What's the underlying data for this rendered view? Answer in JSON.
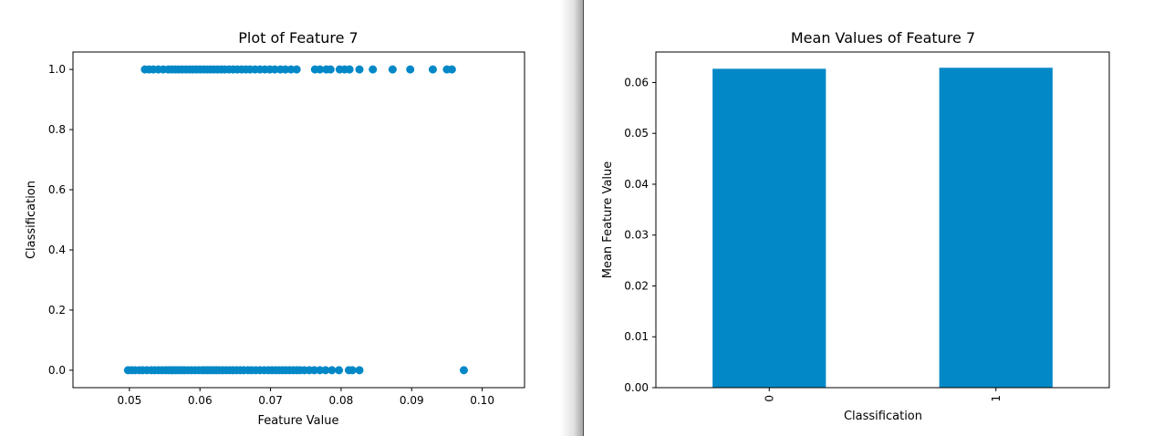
{
  "colors": {
    "accent": "#0288c7",
    "axis": "#000000",
    "background": "#ffffff",
    "divider": "#4a4a4a"
  },
  "chart_data": [
    {
      "type": "scatter",
      "title": "Plot of Feature 7",
      "xlabel": "Feature Value",
      "ylabel": "Classification",
      "xlim": [
        0.042,
        0.106
      ],
      "ylim": [
        -0.058,
        1.058
      ],
      "x_ticks": [
        0.05,
        0.06,
        0.07,
        0.08,
        0.09,
        0.1
      ],
      "x_tick_labels": [
        "0.05",
        "0.06",
        "0.07",
        "0.08",
        "0.09",
        "0.10"
      ],
      "y_ticks": [
        0.0,
        0.2,
        0.4,
        0.6,
        0.8,
        1.0
      ],
      "y_tick_labels": [
        "0.0",
        "0.2",
        "0.4",
        "0.6",
        "0.8",
        "1.0"
      ],
      "grid": false,
      "series": [
        {
          "color": "#0288c7",
          "points": [
            [
              0.0498,
              0
            ],
            [
              0.0503,
              0
            ],
            [
              0.0508,
              0
            ],
            [
              0.0514,
              0
            ],
            [
              0.0519,
              0
            ],
            [
              0.0525,
              0
            ],
            [
              0.0531,
              0
            ],
            [
              0.0536,
              0
            ],
            [
              0.0541,
              0
            ],
            [
              0.0546,
              0
            ],
            [
              0.0551,
              0
            ],
            [
              0.0555,
              0
            ],
            [
              0.0559,
              0
            ],
            [
              0.0562,
              0
            ],
            [
              0.0566,
              0
            ],
            [
              0.057,
              0
            ],
            [
              0.0574,
              0
            ],
            [
              0.0578,
              0
            ],
            [
              0.0583,
              0
            ],
            [
              0.0588,
              0
            ],
            [
              0.0593,
              0
            ],
            [
              0.0598,
              0
            ],
            [
              0.0603,
              0
            ],
            [
              0.0607,
              0
            ],
            [
              0.0611,
              0
            ],
            [
              0.0615,
              0
            ],
            [
              0.0619,
              0
            ],
            [
              0.0623,
              0
            ],
            [
              0.0627,
              0
            ],
            [
              0.0632,
              0
            ],
            [
              0.0637,
              0
            ],
            [
              0.0642,
              0
            ],
            [
              0.0647,
              0
            ],
            [
              0.0652,
              0
            ],
            [
              0.0657,
              0
            ],
            [
              0.0662,
              0
            ],
            [
              0.0668,
              0
            ],
            [
              0.0673,
              0
            ],
            [
              0.0679,
              0
            ],
            [
              0.0685,
              0
            ],
            [
              0.0691,
              0
            ],
            [
              0.0697,
              0
            ],
            [
              0.0702,
              0
            ],
            [
              0.0707,
              0
            ],
            [
              0.0712,
              0
            ],
            [
              0.0717,
              0
            ],
            [
              0.0722,
              0
            ],
            [
              0.0727,
              0
            ],
            [
              0.0732,
              0
            ],
            [
              0.0737,
              0
            ],
            [
              0.0742,
              0
            ],
            [
              0.0748,
              0
            ],
            [
              0.0755,
              0
            ],
            [
              0.0762,
              0
            ],
            [
              0.077,
              0
            ],
            [
              0.0778,
              0
            ],
            [
              0.0787,
              0
            ],
            [
              0.0797,
              0
            ],
            [
              0.0811,
              0
            ],
            [
              0.0816,
              0
            ],
            [
              0.0826,
              0
            ],
            [
              0.0974,
              0
            ],
            [
              0.0522,
              1
            ],
            [
              0.0528,
              1
            ],
            [
              0.0534,
              1
            ],
            [
              0.0541,
              1
            ],
            [
              0.0548,
              1
            ],
            [
              0.0555,
              1
            ],
            [
              0.056,
              1
            ],
            [
              0.0565,
              1
            ],
            [
              0.057,
              1
            ],
            [
              0.0575,
              1
            ],
            [
              0.058,
              1
            ],
            [
              0.0585,
              1
            ],
            [
              0.059,
              1
            ],
            [
              0.0595,
              1
            ],
            [
              0.06,
              1
            ],
            [
              0.0605,
              1
            ],
            [
              0.061,
              1
            ],
            [
              0.0615,
              1
            ],
            [
              0.062,
              1
            ],
            [
              0.0625,
              1
            ],
            [
              0.063,
              1
            ],
            [
              0.0635,
              1
            ],
            [
              0.0641,
              1
            ],
            [
              0.0647,
              1
            ],
            [
              0.0653,
              1
            ],
            [
              0.0659,
              1
            ],
            [
              0.0665,
              1
            ],
            [
              0.0671,
              1
            ],
            [
              0.0678,
              1
            ],
            [
              0.0685,
              1
            ],
            [
              0.0692,
              1
            ],
            [
              0.0699,
              1
            ],
            [
              0.0706,
              1
            ],
            [
              0.0714,
              1
            ],
            [
              0.0721,
              1
            ],
            [
              0.0729,
              1
            ],
            [
              0.0737,
              1
            ],
            [
              0.0763,
              1
            ],
            [
              0.077,
              1
            ],
            [
              0.0779,
              1
            ],
            [
              0.0785,
              1
            ],
            [
              0.0798,
              1
            ],
            [
              0.0805,
              1
            ],
            [
              0.0812,
              1
            ],
            [
              0.0826,
              1
            ],
            [
              0.0845,
              1
            ],
            [
              0.0873,
              1
            ],
            [
              0.0898,
              1
            ],
            [
              0.093,
              1
            ],
            [
              0.095,
              1
            ],
            [
              0.0957,
              1
            ]
          ]
        }
      ]
    },
    {
      "type": "bar",
      "title": "Mean Values of Feature 7",
      "xlabel": "Classification",
      "ylabel": "Mean Feature Value",
      "categories": [
        "0",
        "1"
      ],
      "values": [
        0.0627,
        0.0629
      ],
      "ylim": [
        0,
        0.066
      ],
      "y_ticks": [
        0.0,
        0.01,
        0.02,
        0.03,
        0.04,
        0.05,
        0.06
      ],
      "y_tick_labels": [
        "0.00",
        "0.01",
        "0.02",
        "0.03",
        "0.04",
        "0.05",
        "0.06"
      ],
      "x_tick_rotation": 90,
      "grid": false,
      "color": "#0288c7"
    }
  ]
}
